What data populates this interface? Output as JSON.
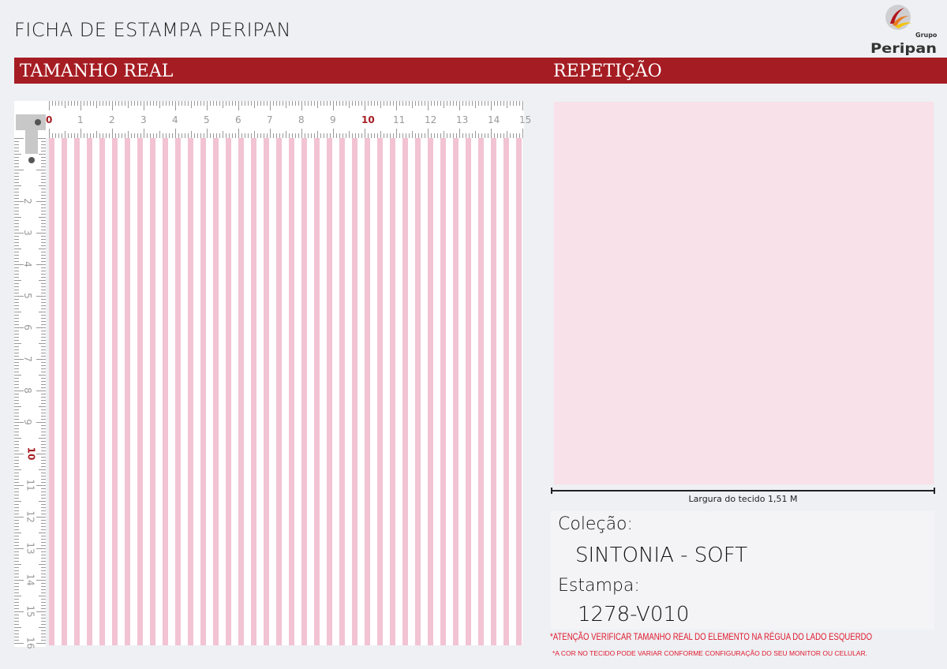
{
  "header": {
    "title": "FICHA DE ESTAMPA PERIPAN",
    "logo_text": "Grupo Peripan"
  },
  "sections": {
    "left": "TAMANHO REAL",
    "right": "REPETIÇÃO"
  },
  "ruler": {
    "unit": "cm",
    "max": 16,
    "highlight": [
      0,
      10
    ],
    "highlight_color": "#a51c22"
  },
  "pattern": {
    "stripe_color": "#f2c3d3",
    "background": "#ffffff",
    "repeat_color": "#f8e1e8"
  },
  "fabric_width_label": "Largura do tecido 1,51 M",
  "info": {
    "collection_label": "Coleção:",
    "collection_value": "SINTONIA - SOFT",
    "print_label": "Estampa:",
    "print_value": "1278-V010"
  },
  "notes": {
    "warning": "*ATENÇÃO VERIFICAR TAMANHO REAL DO ELEMENTO NA RÉGUA DO LADO ESQUERDO",
    "color_note": "*A COR NO TECIDO PODE VARIAR CONFORME CONFIGURAÇÃO DO SEU MONITOR OU CELULAR."
  },
  "brand": {
    "red": "#a51c22"
  }
}
